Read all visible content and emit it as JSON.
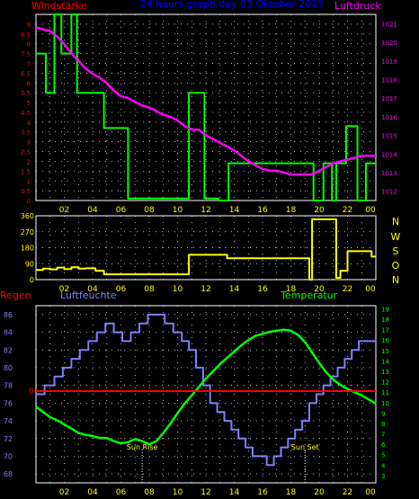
{
  "header": {
    "left_title": "Windstärke",
    "center_title": "24 hours graph day 03 Oktober 2015",
    "right_title": "Luftdruck"
  },
  "colors": {
    "background": "#000000",
    "grid": "#ffffff",
    "wind_speed": "#00ff00",
    "pressure": "#ff00ff",
    "wind_dir": "#ffff00",
    "humidity": "#8080ff",
    "temperature": "#00ff00",
    "rain": "#ff0000",
    "time_labels": "#ffff00",
    "left_axis_red": "#ff0000",
    "pressure_axis": "#ff00ff",
    "dir_axis": "#ffff00",
    "humidity_axis": "#8080ff"
  },
  "x_ticks": [
    "02",
    "04",
    "06",
    "08",
    "10",
    "12",
    "14",
    "16",
    "18",
    "20",
    "22",
    "00"
  ],
  "panel3_labels": {
    "rain": "Regen",
    "humidity": "Luftfeuchte",
    "temperature": "Temperatur",
    "sunrise": "Sun Rise",
    "sunset": "Sun Set"
  },
  "direction_letters": [
    "N",
    "W",
    "S",
    "O",
    "N"
  ],
  "chart_data": [
    {
      "type": "line",
      "title": "24 hours graph day 03 Oktober 2015",
      "x_range": [
        0,
        24
      ],
      "y_left": {
        "label": "Windstärke",
        "ticks": [
          "9",
          "8.5",
          "8",
          "7.5",
          "7",
          "6.5",
          "6",
          "5.5",
          "5",
          "4.5",
          "4",
          "3.5",
          "3",
          "2.5",
          "2",
          "1.5",
          "1",
          "0.5",
          "0"
        ],
        "range": [
          0,
          9.5
        ]
      },
      "y_right": {
        "label": "Luftdruck",
        "ticks": [
          "1021",
          "1020",
          "1019",
          "1018",
          "1017",
          "1016",
          "1015",
          "1014",
          "1013",
          "1012"
        ],
        "range": [
          1011.5,
          1021.5
        ]
      },
      "series": [
        {
          "name": "Windstärke",
          "axis": "left",
          "step": true,
          "x": [
            0,
            0.7,
            0.7,
            1.3,
            1.3,
            1.8,
            1.8,
            2.5,
            2.5,
            2.9,
            2.9,
            4.8,
            4.8,
            6.5,
            6.5,
            10.8,
            10.8,
            11.9,
            11.9,
            12.9,
            12.9,
            13.6,
            13.6,
            19.6,
            19.6,
            20.3,
            20.3,
            20.9,
            20.9,
            21.2,
            21.2,
            21.9,
            21.9,
            22.7,
            22.7,
            23.3,
            23.3,
            24
          ],
          "y": [
            7.5,
            7.5,
            5.5,
            5.5,
            9.5,
            9.5,
            7.5,
            7.5,
            9.5,
            9.5,
            5.5,
            5.5,
            3.7,
            3.7,
            0.1,
            0.1,
            5.5,
            5.5,
            0.1,
            0.1,
            0,
            0,
            1.9,
            1.9,
            0,
            0,
            1.9,
            1.9,
            0,
            0,
            1.9,
            1.9,
            3.8,
            3.8,
            0,
            0,
            1.9,
            1.9
          ]
        },
        {
          "name": "Luftdruck",
          "axis": "right",
          "x": [
            0,
            0.5,
            1,
            1.5,
            2,
            2.5,
            3,
            3.5,
            4,
            4.5,
            5,
            5.5,
            6,
            6.5,
            7,
            7.5,
            8,
            8.5,
            9,
            9.5,
            10,
            10.5,
            11,
            11.5,
            12,
            12.5,
            13,
            13.5,
            14,
            14.5,
            15,
            15.5,
            16,
            16.5,
            17,
            17.5,
            18,
            18.5,
            19,
            19.5,
            20,
            20.5,
            21,
            21.5,
            22,
            22.5,
            23,
            23.5,
            24
          ],
          "y": [
            1020.8,
            1020.7,
            1020.6,
            1020.3,
            1019.9,
            1019.4,
            1019.0,
            1018.6,
            1018.3,
            1018.1,
            1017.8,
            1017.4,
            1017.1,
            1017.0,
            1016.8,
            1016.6,
            1016.5,
            1016.3,
            1016.1,
            1016.0,
            1015.8,
            1015.5,
            1015.3,
            1015.3,
            1015.0,
            1014.8,
            1014.6,
            1014.4,
            1014.2,
            1013.9,
            1013.6,
            1013.4,
            1013.2,
            1013.1,
            1013.1,
            1013.0,
            1012.9,
            1012.9,
            1012.9,
            1012.9,
            1013.1,
            1013.3,
            1013.5,
            1013.6,
            1013.7,
            1013.8,
            1013.9,
            1013.9,
            1013.9
          ]
        }
      ]
    },
    {
      "type": "line",
      "x_range": [
        0,
        24
      ],
      "y_left": {
        "ticks": [
          "360",
          "270",
          "180",
          "90",
          "0"
        ],
        "range": [
          0,
          360
        ]
      },
      "series": [
        {
          "name": "Windrichtung",
          "step": true,
          "x": [
            0,
            0.5,
            0.5,
            1.0,
            1.0,
            1.5,
            1.5,
            2.0,
            2.0,
            2.5,
            2.5,
            3.0,
            3.0,
            3.5,
            3.5,
            4.2,
            4.2,
            4.8,
            4.8,
            10.8,
            10.8,
            13.5,
            13.5,
            19.3,
            19.3,
            19.5,
            19.5,
            21.2,
            21.2,
            21.5,
            21.5,
            22.0,
            22.0,
            23.7,
            23.7,
            24
          ],
          "y": [
            55,
            55,
            62,
            62,
            58,
            58,
            68,
            68,
            60,
            60,
            70,
            70,
            62,
            62,
            64,
            64,
            50,
            50,
            30,
            30,
            140,
            140,
            120,
            120,
            0,
            0,
            340,
            340,
            10,
            10,
            50,
            50,
            160,
            160,
            130,
            130
          ]
        }
      ]
    },
    {
      "type": "line",
      "x_range": [
        0,
        24
      ],
      "y_left": {
        "label": "Luftfeuchte",
        "ticks": [
          "86",
          "84",
          "82",
          "80",
          "78",
          "76",
          "74",
          "72",
          "70",
          "68"
        ],
        "range": [
          67,
          87
        ]
      },
      "y_right": {
        "label": "Temperatur",
        "ticks": [
          "19",
          "18",
          "17",
          "16",
          "15",
          "14",
          "13",
          "12",
          "11",
          "10",
          "9",
          "8",
          "7",
          "6",
          "5",
          "4",
          "3"
        ],
        "range": [
          2.3,
          19.3
        ]
      },
      "rain_zero_label": "0",
      "annotations": [
        {
          "text": "Sun Rise",
          "x": 7.5
        },
        {
          "text": "Sun Set",
          "x": 19.0
        }
      ],
      "series": [
        {
          "name": "Luftfeuchte",
          "axis": "left",
          "step": true,
          "x": [
            0,
            0.6,
            0.6,
            1.3,
            1.3,
            1.9,
            1.9,
            2.5,
            2.5,
            3.1,
            3.1,
            3.7,
            3.7,
            4.3,
            4.3,
            4.9,
            4.9,
            5.5,
            5.5,
            6.1,
            6.1,
            6.7,
            6.7,
            7.3,
            7.3,
            7.9,
            7.9,
            8.5,
            8.5,
            9.1,
            9.1,
            9.7,
            9.7,
            10.3,
            10.3,
            10.8,
            10.8,
            11.3,
            11.3,
            11.8,
            11.8,
            12.3,
            12.3,
            12.8,
            12.8,
            13.3,
            13.3,
            13.8,
            13.8,
            14.3,
            14.3,
            14.8,
            14.8,
            15.3,
            15.3,
            15.8,
            15.8,
            16.3,
            16.3,
            16.8,
            16.8,
            17.3,
            17.3,
            17.8,
            17.8,
            18.3,
            18.3,
            18.8,
            18.8,
            19.3,
            19.3,
            19.8,
            19.8,
            20.3,
            20.3,
            20.8,
            20.8,
            21.3,
            21.3,
            21.8,
            21.8,
            22.3,
            22.3,
            22.8,
            22.8,
            23.3,
            23.3,
            24
          ],
          "y": [
            77,
            77,
            78,
            78,
            79,
            79,
            80,
            80,
            81,
            81,
            82,
            82,
            83,
            83,
            84,
            84,
            85,
            85,
            84,
            84,
            83,
            83,
            84,
            84,
            85,
            85,
            86,
            86,
            86,
            86,
            85,
            85,
            84,
            84,
            83,
            83,
            82,
            82,
            80,
            80,
            78,
            78,
            76,
            76,
            75,
            75,
            74,
            74,
            73,
            73,
            72,
            72,
            71,
            71,
            70,
            70,
            70,
            70,
            69,
            69,
            70,
            70,
            71,
            71,
            72,
            72,
            73,
            73,
            74,
            74,
            76,
            76,
            77,
            77,
            78,
            78,
            79,
            79,
            80,
            80,
            81,
            81,
            82,
            82,
            83,
            83,
            83,
            83
          ]
        },
        {
          "name": "Temperatur",
          "axis": "right",
          "x": [
            0,
            0.5,
            1,
            1.5,
            2,
            2.5,
            3,
            3.5,
            4,
            4.5,
            5,
            5.5,
            6,
            6.5,
            7,
            7.5,
            8,
            8.5,
            9,
            9.5,
            10,
            10.5,
            11,
            11.5,
            12,
            12.5,
            13,
            13.5,
            14,
            14.5,
            15,
            15.5,
            16,
            16.5,
            17,
            17.5,
            18,
            18.5,
            19,
            19.5,
            20,
            20.5,
            21,
            21.5,
            22,
            22.5,
            23,
            23.5,
            24
          ],
          "y": [
            9.6,
            9.1,
            8.6,
            8.3,
            7.9,
            7.5,
            7.1,
            6.9,
            6.8,
            6.6,
            6.6,
            6.3,
            6.1,
            6.2,
            6.5,
            6.3,
            6.0,
            6.3,
            7.1,
            8.0,
            9.0,
            9.9,
            10.7,
            11.5,
            12.3,
            13.0,
            13.7,
            14.3,
            14.9,
            15.5,
            16.0,
            16.4,
            16.6,
            16.8,
            16.9,
            17.0,
            16.9,
            16.5,
            15.8,
            14.8,
            13.8,
            12.9,
            12.2,
            11.7,
            11.3,
            11.0,
            10.7,
            10.3,
            9.9
          ]
        },
        {
          "name": "Regen",
          "axis": "rain",
          "x": [
            0,
            24
          ],
          "y": [
            0,
            0
          ]
        }
      ]
    }
  ]
}
